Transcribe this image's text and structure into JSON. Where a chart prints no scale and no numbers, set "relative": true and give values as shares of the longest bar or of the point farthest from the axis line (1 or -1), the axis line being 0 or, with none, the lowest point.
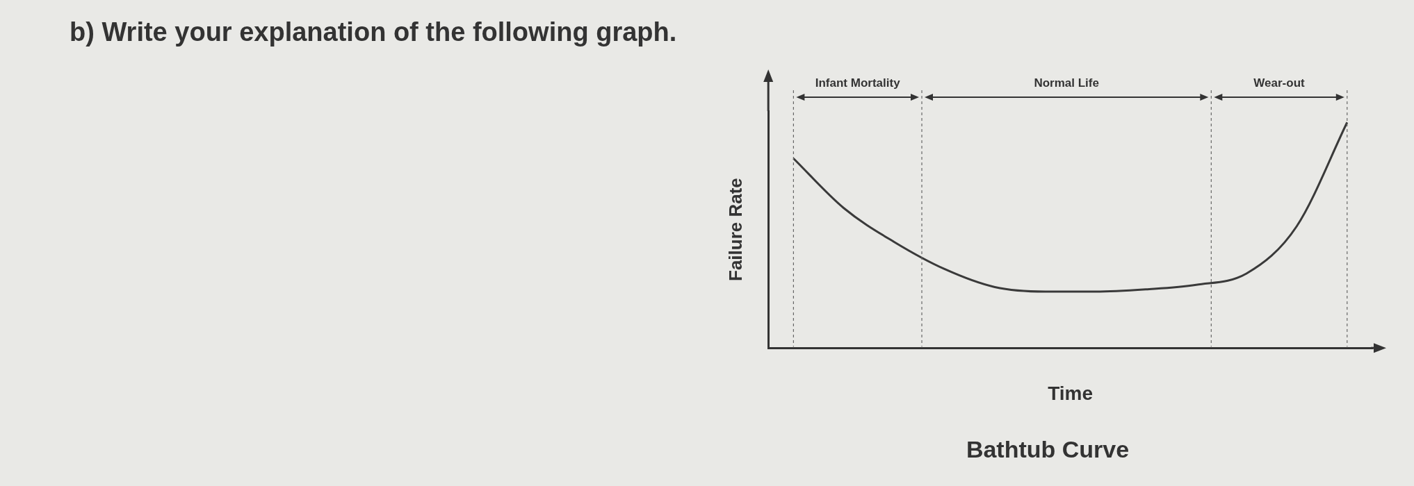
{
  "chart_data": {
    "type": "line",
    "title": "Bathtub Curve",
    "xlabel": "Time",
    "ylabel": "Failure Rate",
    "relative": true,
    "annotations": [
      "b) Write your explanation of the following graph.",
      "Infant Mortality",
      "Normal Life",
      "Wear-out"
    ],
    "categories": [
      null,
      null,
      null,
      null,
      null,
      null,
      null,
      null,
      null,
      null,
      null,
      null
    ],
    "series": [
      {
        "color": "#3a3a3a",
        "values": [
          0.84,
          0.62,
          0.47,
          0.35,
          0.27,
          0.25,
          0.25,
          0.26,
          0.28,
          0.33,
          0.54,
          1
        ]
      }
    ],
    "grid": false,
    "legend": false,
    "marker": "none",
    "line_style": "solid"
  }
}
